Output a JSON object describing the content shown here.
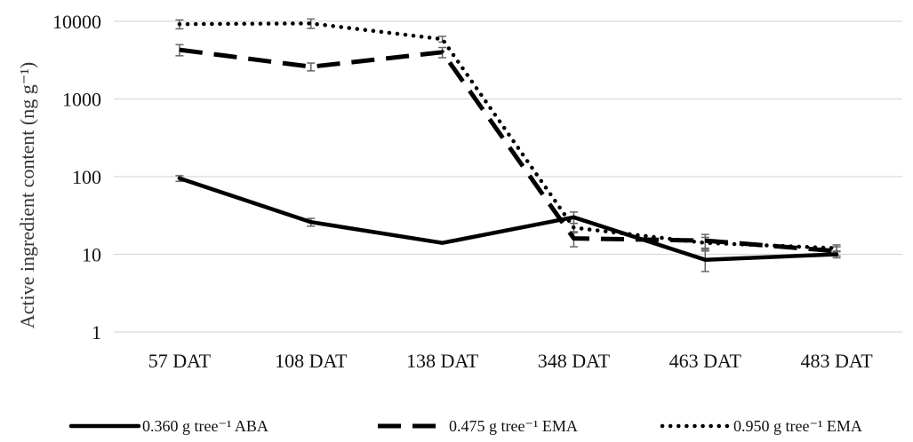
{
  "chart_data": {
    "type": "line",
    "title": "",
    "xlabel": "",
    "ylabel": "Active ingredient content (ng g⁻¹)",
    "yscale": "log",
    "ylim": [
      1,
      10000
    ],
    "yticks": [
      {
        "value": 1,
        "label": "1"
      },
      {
        "value": 10,
        "label": "10"
      },
      {
        "value": 100,
        "label": "100"
      },
      {
        "value": 1000,
        "label": "1000"
      },
      {
        "value": 10000,
        "label": "10000"
      }
    ],
    "categories": [
      "57 DAT",
      "108 DAT",
      "138 DAT",
      "348 DAT",
      "463 DAT",
      "483 DAT"
    ],
    "grid": true,
    "legend_position": "bottom",
    "series": [
      {
        "name": "0.360 g tree⁻¹  ABA",
        "style": "solid",
        "color": "#000000",
        "values": [
          95,
          26,
          14,
          30,
          8.5,
          10
        ],
        "errors": [
          8,
          3,
          null,
          5,
          2.5,
          1
        ]
      },
      {
        "name": "0.475 g tree⁻¹  EMA",
        "style": "dashed",
        "color": "#000000",
        "values": [
          4300,
          2600,
          4000,
          16,
          15,
          11
        ],
        "errors": [
          700,
          300,
          600,
          3.5,
          3,
          1.5
        ]
      },
      {
        "name": "0.950 g tree⁻¹  EMA",
        "style": "dotted",
        "color": "#000000",
        "values": [
          9200,
          9400,
          5900,
          22,
          14,
          12
        ],
        "errors": [
          1200,
          1300,
          500,
          3,
          2.5,
          1.2
        ]
      }
    ],
    "errorbar_color": "#666666"
  }
}
